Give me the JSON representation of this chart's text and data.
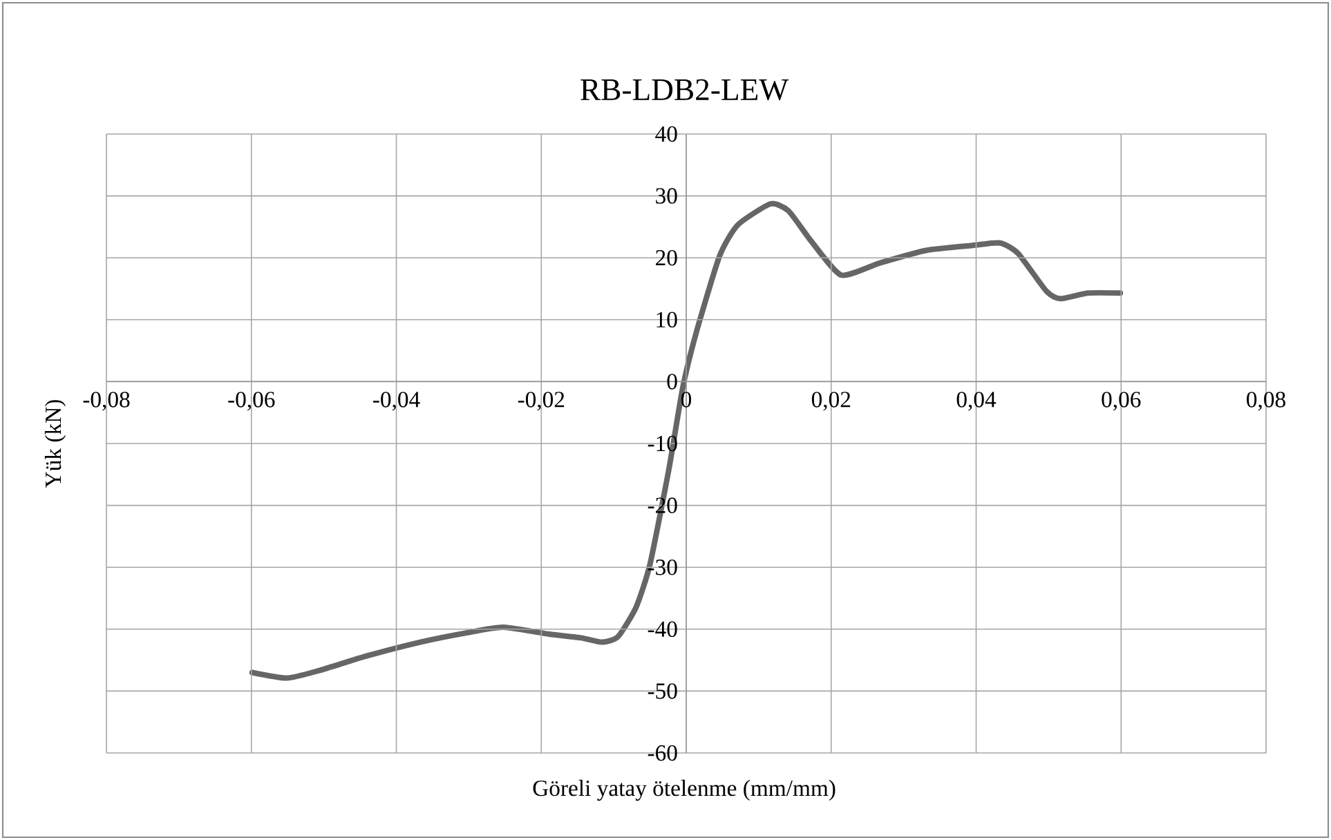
{
  "chart_data": {
    "type": "line",
    "title": "RB-LDB2-LEW",
    "xlabel": "Göreli yatay ötelenme (mm/mm)",
    "ylabel": "Yük (kN)",
    "xlim": [
      -0.08,
      0.08
    ],
    "ylim": [
      -60,
      40
    ],
    "xticks": [
      {
        "value": -0.08,
        "label": "-0,08"
      },
      {
        "value": -0.06,
        "label": "-0,06"
      },
      {
        "value": -0.04,
        "label": "-0,04"
      },
      {
        "value": -0.02,
        "label": "-0,02"
      },
      {
        "value": 0,
        "label": "0"
      },
      {
        "value": 0.02,
        "label": "0,02"
      },
      {
        "value": 0.04,
        "label": "0,04"
      },
      {
        "value": 0.06,
        "label": "0,06"
      },
      {
        "value": 0.08,
        "label": "0,08"
      }
    ],
    "yticks": [
      -60,
      -50,
      -40,
      -30,
      -20,
      -10,
      0,
      10,
      20,
      30,
      40
    ],
    "grid": true,
    "x": [
      -0.0599,
      -0.0551,
      -0.0507,
      -0.0443,
      -0.0367,
      -0.0303,
      -0.0253,
      -0.0189,
      -0.0145,
      -0.0116,
      -0.0094,
      -0.0069,
      -0.005,
      -0.0024,
      -0.0005,
      0.0014,
      0.0046,
      0.0071,
      0.0116,
      0.0141,
      0.0173,
      0.0214,
      0.0268,
      0.0331,
      0.0395,
      0.0433,
      0.0458,
      0.0497,
      0.0516,
      0.0554,
      0.0599
    ],
    "series": [
      {
        "color": "#666666",
        "values": [
          -47.0,
          -47.9,
          -46.7,
          -44.4,
          -42.1,
          -40.6,
          -39.7,
          -40.8,
          -41.4,
          -42.1,
          -41.2,
          -36.4,
          -29.5,
          -14.2,
          -1.1,
          8.0,
          20.3,
          25.3,
          28.7,
          27.6,
          22.6,
          17.2,
          19.2,
          21.2,
          22.0,
          22.4,
          20.7,
          14.6,
          13.4,
          14.3,
          14.3
        ]
      }
    ]
  }
}
